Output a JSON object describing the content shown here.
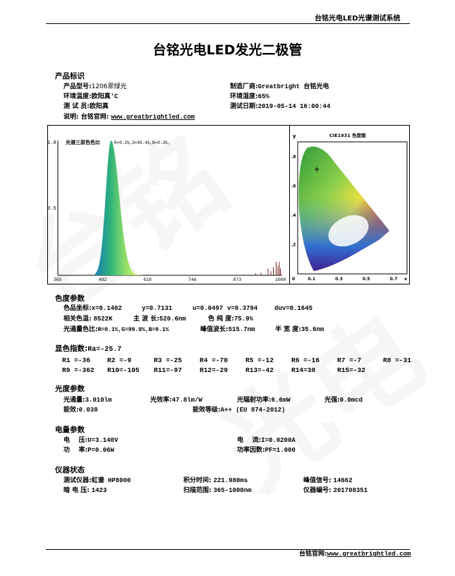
{
  "header": {
    "system_title": "台铭光电LED光谱测试系统"
  },
  "title": "台铭光电LED发光二极管",
  "product": {
    "section": "产品标识",
    "model_label": "产品型号:",
    "model": "1206翠绿光",
    "maker_label": "制造厂商:",
    "maker": "Greatbright 台铭光电",
    "temp_label": "环境温度:",
    "temp": "欧阳真'C",
    "humidity_label": "环境湿度:",
    "humidity": "65%",
    "tester_label": "测 试 员:",
    "tester": "欧阳真",
    "date_label": "测试日期:",
    "date": "2019-05-14 16:00:44",
    "note_label": "说明: 台铭官网:",
    "note_url": "www.greatbrightled.com"
  },
  "spectrum": {
    "ratio_label": "光谱三原色色比",
    "ratio": "R=0.2%,G=99.4%,B=0.3%,",
    "y_ticks": [
      "1.0",
      "0.5"
    ],
    "x_ticks": [
      "365",
      "492",
      "619",
      "746",
      "873",
      "1000"
    ]
  },
  "chart_data": {
    "type": "area",
    "xlim": [
      365,
      1000
    ],
    "ylim": [
      0,
      1.0
    ],
    "x_ticks": [
      365,
      492,
      619,
      746,
      873,
      1000
    ],
    "y_ticks": [
      0.5,
      1.0
    ],
    "peak_nm": 515.7,
    "fwhm_nm": 35.6,
    "annotation": "光谱三原色色比 R=0.2%,G=99.4%,B=0.3%,"
  },
  "cie": {
    "title": "CIE1931 色度图",
    "y_axis": "y",
    "x_axis": "x",
    "y_ticks": [
      ".8",
      ".6",
      ".4",
      ".2"
    ],
    "x_ticks": [
      "0",
      "0.1",
      "0.3",
      "0.5",
      "0.7"
    ],
    "point": {
      "x": 0.1402,
      "y": 0.7131
    }
  },
  "chroma": {
    "section": "色度参数",
    "coord_label": "色品坐标:",
    "x": "x=0.1402",
    "y": "y=0.7131",
    "u": "u=0.0497",
    "v": "v=0.3794",
    "duv": "duv=0.1645",
    "cct_label": "相关色温:",
    "cct": "8522K",
    "dom_label": "主 波 长:",
    "dom": "520.6nm",
    "purity_label": "色 纯 度:",
    "purity": "75.9%",
    "ratio_label": "光通量色比:",
    "ratio": "R=0.1%,G=99.8%,B=0.1%",
    "peak_label": "峰值波长:",
    "peak": "515.7nm",
    "hw_label": "半 宽 度:",
    "hw": "35.6nm"
  },
  "cri": {
    "section": "显色指数:",
    "ra": "Ra=-25.7",
    "items": [
      "R1 =-36",
      "R2 =-9",
      "R3 =-25",
      "R4 =-70",
      "R5 =-12",
      "R6 =-16",
      "R7 =-7",
      "R8 =-31",
      "R9 =-362",
      "R10=-105",
      "R11=-97",
      "R12=-29",
      "R13=-42",
      "R14=38",
      "R15=-32"
    ]
  },
  "photo": {
    "section": "光度参数",
    "flux_label": "光通量:",
    "flux": "3.010lm",
    "eff_label": "光效率:",
    "eff": "47.8lm/W",
    "rad_label": "光辐射功率:",
    "rad": "6.6mW",
    "int_label": "光强:",
    "int": "0.0mcd",
    "ee_label": "能效:",
    "ee": "0.038",
    "grade_label": "能效等级:",
    "grade": "A++ (EU 874-2012)"
  },
  "elec": {
    "section": "电量参数",
    "u_label": "电    压:",
    "u": "U=3.140V",
    "i_label": "电    流:",
    "i": "I=0.0200A",
    "p_label": "功    率:",
    "p": "P=0.06W",
    "pf_label": "功率因数:",
    "pf": "PF=1.000"
  },
  "inst": {
    "section": "仪器状态",
    "dev_label": "测试仪器:",
    "dev": "虹谱 HP8000",
    "int_label": "积分时间:",
    "int": "221.980ms",
    "peak_label": "峰值信号:",
    "peak": "14662",
    "dark_label": "暗 电 压:",
    "dark": "1423",
    "range_label": "扫描范围:",
    "range": "365-1000nm",
    "sn_label": "仪器编号:",
    "sn": "201708351"
  },
  "footer": {
    "label": "台铭官网:",
    "url": "www.greatbrightled.com"
  }
}
